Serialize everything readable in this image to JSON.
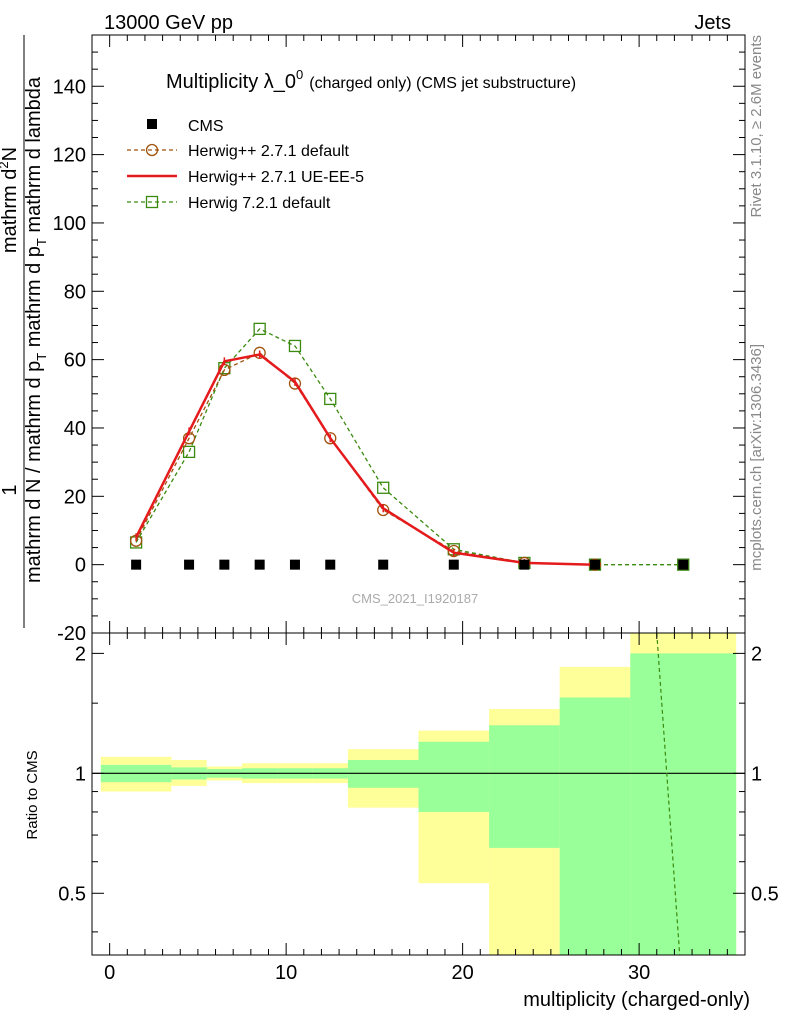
{
  "header": {
    "left": "13000 GeV pp",
    "right": "Jets"
  },
  "side_labels": {
    "rivet": "Rivet 3.1.10, ≥ 2.6M events",
    "mcplots": "mcplots.cern.ch [arXiv:1306.3436]"
  },
  "watermark": "CMS_2021_I1920187",
  "chart_data": [
    {
      "type": "line",
      "title_main": "Multiplicity λ_0",
      "title_sup": "0",
      "title_sub": "(charged only) (CMS jet substructure)",
      "ylabel_top": "1",
      "ylabel_numer": "mathrm d",
      "ylabel_numer_sup": "2",
      "ylabel_numer_end": "N",
      "ylabel_bottom": "mathrm d N / mathrm d p",
      "ylabel_bottom_sub": "T",
      "ylabel_bottom_end": " mathrm d p",
      "ylabel_bottom_sub2": "T",
      "ylabel_bottom_end2": " mathrm d lambda",
      "xlim": [
        -1,
        36
      ],
      "ylim": [
        -20,
        155
      ],
      "y_ticks": [
        -20,
        0,
        20,
        40,
        60,
        80,
        100,
        120,
        140
      ],
      "legend_position": "top-left",
      "series": [
        {
          "name": "CMS",
          "color": "#000000",
          "style": "markers",
          "x": [
            1.5,
            4.5,
            6.5,
            8.5,
            10.5,
            12.5,
            15.5,
            19.5,
            23.5,
            27.5,
            32.5
          ],
          "y": [
            0,
            0,
            0,
            0,
            0,
            0,
            0,
            0,
            0,
            0,
            0
          ]
        },
        {
          "name": "Herwig++ 2.7.1 default",
          "color": "#a0520c",
          "style": "dashed-circle",
          "x": [
            1.5,
            4.5,
            6.5,
            8.5,
            10.5,
            12.5,
            15.5,
            19.5,
            23.5,
            27.5
          ],
          "y": [
            7,
            37,
            57,
            62,
            53,
            37,
            16,
            4,
            0.5,
            0
          ]
        },
        {
          "name": "Herwig++ 2.7.1 UE-EE-5",
          "color": "#e41a1c",
          "style": "solid",
          "x": [
            1.5,
            4.5,
            6.5,
            8.5,
            10.5,
            12.5,
            15.5,
            19.5,
            23.5,
            27.5
          ],
          "y": [
            8,
            39,
            59.5,
            61.5,
            53.5,
            37,
            16.5,
            3.5,
            0.5,
            0
          ]
        },
        {
          "name": "Herwig 7.2.1 default",
          "color": "#3a8a10",
          "style": "dashed-square",
          "x": [
            1.5,
            4.5,
            6.5,
            8.5,
            10.5,
            12.5,
            15.5,
            19.5,
            23.5,
            27.5,
            32.5
          ],
          "y": [
            6.5,
            33,
            57.5,
            69,
            64,
            48.5,
            22.5,
            4.5,
            0.5,
            0,
            0
          ]
        }
      ]
    },
    {
      "type": "ratio",
      "ylabel": "Ratio to CMS",
      "xlabel": "multiplicity (charged-only)",
      "xlim": [
        -1,
        36
      ],
      "ylim": [
        0.35,
        2.25
      ],
      "x_ticks": [
        0,
        10,
        20,
        30
      ],
      "y_ticks": [
        0.5,
        1,
        2
      ],
      "reference": 1,
      "colors": {
        "stat": "#99ff99",
        "total": "#ffff99",
        "line": "#000000",
        "herwig7": "#3a8a10"
      },
      "bands": [
        {
          "x0": -0.5,
          "x1": 3.5,
          "stat": [
            0.95,
            1.05
          ],
          "total": [
            0.9,
            1.1
          ]
        },
        {
          "x0": 3.5,
          "x1": 5.5,
          "stat": [
            0.965,
            1.035
          ],
          "total": [
            0.93,
            1.08
          ]
        },
        {
          "x0": 5.5,
          "x1": 7.5,
          "stat": [
            0.975,
            1.025
          ],
          "total": [
            0.96,
            1.04
          ]
        },
        {
          "x0": 7.5,
          "x1": 9.5,
          "stat": [
            0.97,
            1.03
          ],
          "total": [
            0.945,
            1.06
          ]
        },
        {
          "x0": 9.5,
          "x1": 11.5,
          "stat": [
            0.97,
            1.03
          ],
          "total": [
            0.945,
            1.06
          ]
        },
        {
          "x0": 11.5,
          "x1": 13.5,
          "stat": [
            0.97,
            1.03
          ],
          "total": [
            0.945,
            1.06
          ]
        },
        {
          "x0": 13.5,
          "x1": 17.5,
          "stat": [
            0.92,
            1.08
          ],
          "total": [
            0.82,
            1.15
          ]
        },
        {
          "x0": 17.5,
          "x1": 21.5,
          "stat": [
            0.8,
            1.2
          ],
          "total": [
            0.53,
            1.28
          ]
        },
        {
          "x0": 21.5,
          "x1": 25.5,
          "stat": [
            0.65,
            1.32
          ],
          "total": [
            0.35,
            1.45
          ]
        },
        {
          "x0": 25.5,
          "x1": 29.5,
          "stat": [
            0.35,
            1.55
          ],
          "total": [
            0.35,
            1.85
          ]
        },
        {
          "x0": 29.5,
          "x1": 35.5,
          "stat": [
            0.35,
            2.0
          ],
          "total": [
            0.35,
            2.25
          ]
        }
      ],
      "herwig7_ratio_line": {
        "x": [
          31,
          32.3
        ],
        "y": [
          2.25,
          0.35
        ]
      }
    }
  ]
}
